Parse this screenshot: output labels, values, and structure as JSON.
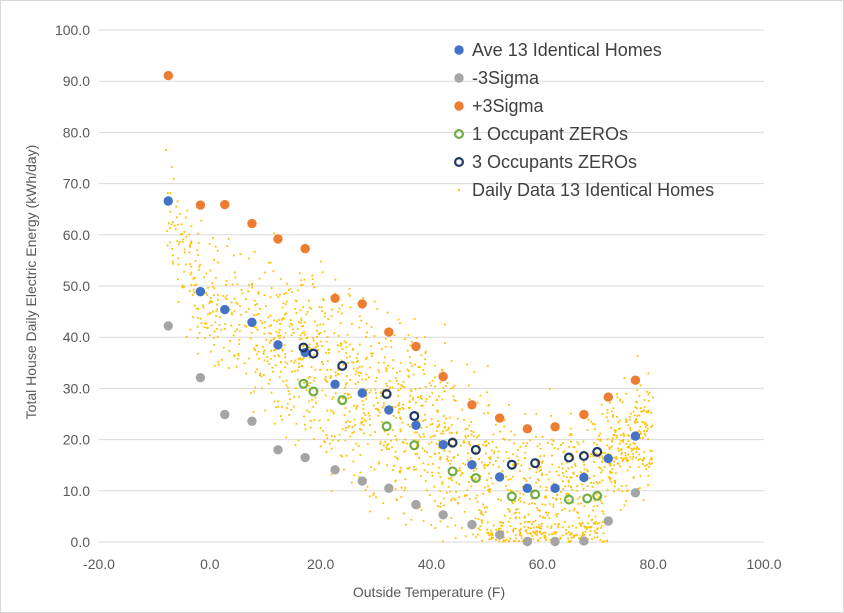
{
  "chart_data": {
    "type": "scatter",
    "xlabel": "Outside Temperature (F)",
    "ylabel": "Total House Daily Electric Energy (kWh/day)",
    "xlim": [
      -20,
      100
    ],
    "ylim": [
      0,
      100
    ],
    "xticks": [
      "-20.0",
      "0.0",
      "20.0",
      "40.0",
      "60.0",
      "80.0",
      "100.0"
    ],
    "yticks": [
      "0.0",
      "10.0",
      "20.0",
      "30.0",
      "40.0",
      "50.0",
      "60.0",
      "70.0",
      "80.0",
      "90.0",
      "100.0"
    ],
    "grid": "horizontal",
    "legend_position": "top-right",
    "series": [
      {
        "name": "Ave 13 Identical Homes",
        "color": "#4472C4",
        "marker": "filled-circle",
        "points": [
          [
            -7.5,
            66.6
          ],
          [
            -1.7,
            48.9
          ],
          [
            2.7,
            45.4
          ],
          [
            7.6,
            42.9
          ],
          [
            12.3,
            38.5
          ],
          [
            17.2,
            37.0
          ],
          [
            22.6,
            30.8
          ],
          [
            27.5,
            29.1
          ],
          [
            32.3,
            25.8
          ],
          [
            37.2,
            22.8
          ],
          [
            42.1,
            19.0
          ],
          [
            47.3,
            15.1
          ],
          [
            52.3,
            12.7
          ],
          [
            57.3,
            10.5
          ],
          [
            62.3,
            10.5
          ],
          [
            67.5,
            12.6
          ],
          [
            71.9,
            16.3
          ],
          [
            76.8,
            20.7
          ]
        ]
      },
      {
        "name": "-3Sigma",
        "color": "#A5A5A5",
        "marker": "filled-circle",
        "points": [
          [
            -7.5,
            42.2
          ],
          [
            -1.7,
            32.1
          ],
          [
            2.7,
            24.9
          ],
          [
            7.6,
            23.6
          ],
          [
            12.3,
            18.0
          ],
          [
            17.2,
            16.5
          ],
          [
            22.6,
            14.1
          ],
          [
            27.5,
            11.9
          ],
          [
            32.3,
            10.5
          ],
          [
            37.2,
            7.3
          ],
          [
            42.1,
            5.3
          ],
          [
            47.3,
            3.4
          ],
          [
            52.3,
            1.4
          ],
          [
            57.3,
            0.1
          ],
          [
            62.3,
            0.1
          ],
          [
            67.5,
            0.2
          ],
          [
            71.9,
            4.1
          ],
          [
            76.8,
            9.6
          ]
        ]
      },
      {
        "name": "+3Sigma",
        "color": "#ED7D31",
        "marker": "filled-circle",
        "points": [
          [
            -7.5,
            91.1
          ],
          [
            -1.7,
            65.8
          ],
          [
            2.7,
            65.9
          ],
          [
            7.6,
            62.2
          ],
          [
            12.3,
            59.2
          ],
          [
            17.2,
            57.3
          ],
          [
            22.6,
            47.6
          ],
          [
            27.5,
            46.5
          ],
          [
            32.3,
            41.0
          ],
          [
            37.2,
            38.2
          ],
          [
            42.1,
            32.3
          ],
          [
            47.3,
            26.8
          ],
          [
            52.3,
            24.2
          ],
          [
            57.3,
            22.1
          ],
          [
            62.3,
            22.5
          ],
          [
            67.5,
            24.9
          ],
          [
            71.9,
            28.3
          ],
          [
            76.8,
            31.6
          ]
        ]
      },
      {
        "name": "1 Occupant ZEROs",
        "color": "#70AD47",
        "marker": "hollow-circle",
        "points": [
          [
            16.9,
            30.9
          ],
          [
            18.7,
            29.4
          ],
          [
            23.9,
            27.7
          ],
          [
            31.9,
            22.6
          ],
          [
            36.9,
            18.9
          ],
          [
            43.8,
            13.8
          ],
          [
            48.0,
            12.5
          ],
          [
            54.5,
            8.9
          ],
          [
            58.7,
            9.3
          ],
          [
            64.8,
            8.3
          ],
          [
            68.1,
            8.5
          ],
          [
            69.9,
            9.0
          ]
        ]
      },
      {
        "name": "3 Occupants ZEROs",
        "color": "#203864",
        "marker": "hollow-circle",
        "points": [
          [
            16.9,
            38.0
          ],
          [
            18.7,
            36.8
          ],
          [
            23.9,
            34.4
          ],
          [
            31.9,
            28.9
          ],
          [
            36.9,
            24.6
          ],
          [
            43.8,
            19.4
          ],
          [
            48.0,
            18.0
          ],
          [
            54.5,
            15.1
          ],
          [
            58.7,
            15.4
          ],
          [
            64.8,
            16.5
          ],
          [
            67.5,
            16.8
          ],
          [
            69.9,
            17.6
          ]
        ]
      },
      {
        "name": "Daily Data 13 Identical Homes",
        "color": "#FFC000",
        "marker": "small-dot",
        "note_points": "about 2000 daily points, generated deterministically in the script",
        "points": []
      }
    ]
  }
}
